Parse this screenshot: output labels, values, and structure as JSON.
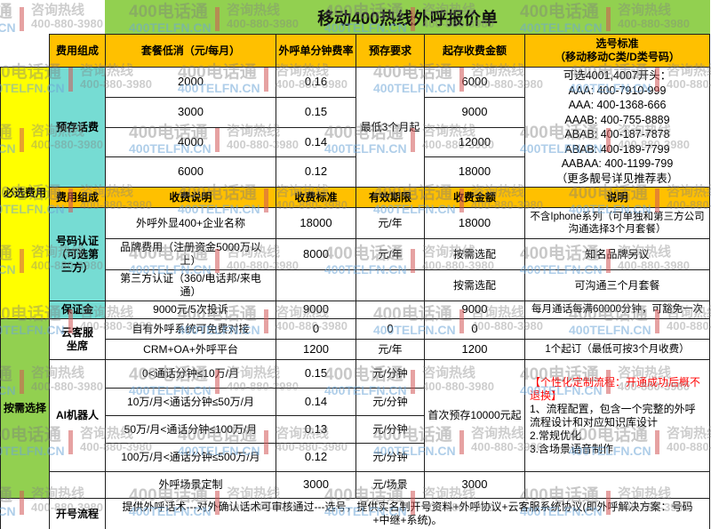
{
  "title": "移动400热线外呼报价单",
  "watermark": {
    "brand": "400电话通",
    "domain": "400TELFN.CN",
    "hotline_label": "咨询热线",
    "hotline_number": "400-880-3980"
  },
  "colors": {
    "header_gold": "#FFC000",
    "required_yellow": "#FFFF00",
    "optional_green": "#92D050",
    "category_teal": "#76DCD3",
    "note_red": "#FF0000"
  },
  "groups": {
    "required": "必选费用",
    "optional": "按需选择"
  },
  "header1": {
    "fee_composition": "费用组成",
    "monthly_minimum": "套餐低消（元/每月）",
    "per_minute_rate": "外呼单分钟费率",
    "prepay_requirement": "预存要求",
    "initial_amount": "起存收费金额",
    "number_selection_line1": "选号标准",
    "number_selection_line2": "（移动移动C类/D类号码）"
  },
  "header2": {
    "fee_composition": "费用组成",
    "charge_desc": "收费说明",
    "charge_standard": "收费标准",
    "validity": "有效期限",
    "charge_amount": "收费金额",
    "note": "说明"
  },
  "prepaid": {
    "label": "预存话费",
    "requirement": "最低3个月起",
    "rows": [
      {
        "monthly": "2000",
        "rate": "0.16",
        "deposit": "6000"
      },
      {
        "monthly": "3000",
        "rate": "0.15",
        "deposit": "9000"
      },
      {
        "monthly": "4000",
        "rate": "0.14",
        "deposit": "12000"
      },
      {
        "monthly": "6000",
        "rate": "0.12",
        "deposit": "18000"
      }
    ],
    "numbers": [
      "可选4001,4007开头：",
      "AAA: 400-7910-999",
      "AAA: 400-1368-666",
      "AAAB: 400-755-8889",
      "ABAB: 400-187-7878",
      "ABAB: 400-189-7799",
      "AABAA: 400-1199-799",
      "（更多靓号详见推荐表）"
    ]
  },
  "auth": {
    "label": "号码认证（可选第三方）",
    "rows": [
      {
        "desc": "外呼外显400+企业名称",
        "standard": "18000",
        "period": "元/年",
        "amount": "18000",
        "note": "不含Iphone系列（可单独和第三方公司沟通选择3个月套餐）"
      },
      {
        "desc": "品牌费用（注册资金5000万以上）",
        "standard": "8000",
        "period": "元/年",
        "amount": "按需选配",
        "note": "知名品牌另议"
      },
      {
        "desc": "第三方认证（360/电话邦/来电通）",
        "standard": "",
        "period": "",
        "amount": "按需选配",
        "note": "可沟通三个月套餐"
      }
    ]
  },
  "deposit": {
    "label": "保证金",
    "desc": "9000元/5次投诉",
    "standard": "9000",
    "period": "",
    "amount": "9000",
    "note": "每月通话每满60000分钟，可豁免一次"
  },
  "cloud": {
    "label": "云客服坐席",
    "rows": [
      {
        "desc": "自有外呼系统可免费对接",
        "standard": "0",
        "period": "0",
        "amount": "0",
        "note": ""
      },
      {
        "desc": "CRM+OA+外呼平台",
        "standard": "1200",
        "period": "元/年",
        "amount": "1200",
        "note": "1个起订（最低可按3个月收费）"
      }
    ]
  },
  "ai": {
    "label": "AI机器人",
    "prepay": "首次预存10000元起",
    "note_red": "【个性化定制流程：开通成功后概不退换】",
    "note_lines": [
      "1、流程配置，包含一个完整的外呼流程设计和对应知识库设计",
      "2.常规优化",
      "3.含场景语音制作"
    ],
    "rows": [
      {
        "desc": "0<通话分钟≤10万/月",
        "rate": "0.15",
        "unit": "元/分钟"
      },
      {
        "desc": "10万/月<通话分钟≤50万/月",
        "rate": "0.14",
        "unit": "元/分钟"
      },
      {
        "desc": "50万/月<通话分钟≤100万/月",
        "rate": "0.13",
        "unit": "元/分钟"
      },
      {
        "desc": "100万/月<通话分钟≤500万/月",
        "rate": "0.12",
        "unit": "元/分钟"
      }
    ],
    "scene": {
      "desc": "外呼场景定制",
      "standard": "3000",
      "unit": "元/场景",
      "amount": "3000"
    }
  },
  "opening": {
    "label": "开号流程",
    "desc": "提供外呼话术---对外确认话术可审核通过---选号，提供实名制开号资料+外呼协议+云客服系统协议(即外呼解决方案：号码+中继+系统)。"
  }
}
